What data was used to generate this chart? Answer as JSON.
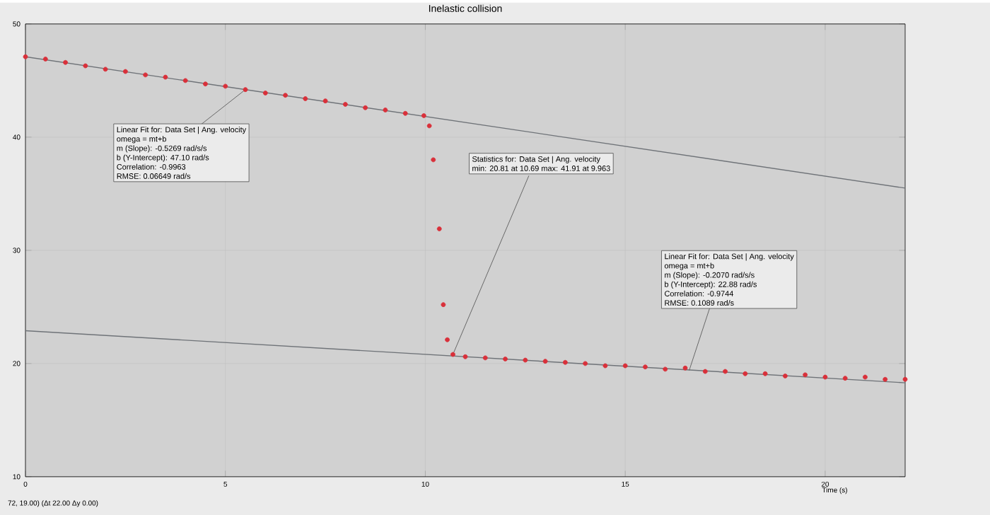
{
  "chart_data": {
    "type": "scatter",
    "title": "Inelastic collision",
    "xlabel": "Time (s)",
    "xlim": [
      0,
      22
    ],
    "ylim": [
      10,
      50
    ],
    "xticks": [
      0,
      5,
      10,
      15,
      20
    ],
    "yticks": [
      10,
      20,
      30,
      40,
      50
    ],
    "grid": true,
    "series": [
      {
        "color": "#d9303a",
        "marker": "circle",
        "x": [
          0,
          0.5,
          1,
          1.5,
          2,
          2.5,
          3,
          3.5,
          4,
          4.5,
          5,
          5.5,
          6,
          6.5,
          7,
          7.5,
          8,
          8.5,
          9,
          9.5,
          9.963,
          10.1,
          10.2,
          10.35,
          10.45,
          10.55,
          10.69,
          11,
          11.5,
          12,
          12.5,
          13,
          13.5,
          14,
          14.5,
          15,
          15.5,
          16,
          16.5,
          17,
          17.5,
          18,
          18.5,
          19,
          19.5,
          20,
          20.5,
          21,
          21.5,
          22
        ],
        "values": [
          47.1,
          46.9,
          46.6,
          46.3,
          46.0,
          45.8,
          45.5,
          45.3,
          45.0,
          44.7,
          44.5,
          44.2,
          43.9,
          43.7,
          43.4,
          43.2,
          42.9,
          42.6,
          42.4,
          42.1,
          41.9,
          41.0,
          38.0,
          31.9,
          25.2,
          22.1,
          20.8,
          20.6,
          20.5,
          20.4,
          20.3,
          20.2,
          20.1,
          20.0,
          19.8,
          19.8,
          19.7,
          19.5,
          19.6,
          19.3,
          19.3,
          19.1,
          19.1,
          18.9,
          19.0,
          18.8,
          18.7,
          18.8,
          18.6,
          18.6
        ]
      },
      {
        "type": "line",
        "color": "#6f7378",
        "marker": "none",
        "line_style": "solid",
        "x": [
          0,
          22
        ],
        "values": [
          47.1,
          35.5
        ]
      },
      {
        "type": "line",
        "color": "#6f7378",
        "marker": "none",
        "line_style": "solid",
        "x": [
          0,
          22
        ],
        "values": [
          22.9,
          18.3
        ]
      }
    ],
    "annotations": [
      "Linear Fit for: Data Set | Ang. velocity",
      {
        "text": "omega = mt+b",
        "x": 5.5,
        "y": 44.2
      },
      "m (Slope): -0.5269 rad/s/s",
      "b (Y-Intercept): 47.10 rad/s",
      "Correlation: -0.9963",
      "RMSE: 0.06649 rad/s",
      "Statistics for: Data Set | Ang. velocity",
      {
        "text": "min: 20.81 at 10.69 max: 41.91 at 9.963",
        "x": 10.69,
        "y": 20.8
      },
      "Linear Fit for: Data Set | Ang. velocity",
      {
        "text": "omega = mt+b",
        "x": 16.6,
        "y": 19.4
      },
      "m (Slope): -0.2070 rad/s/s",
      "b (Y-Intercept): 22.88 rad/s",
      "Correlation: -0.9744",
      "RMSE: 0.1089 rad/s",
      "72, 19.00) (Δt 22.00 Δy 0.00)"
    ]
  }
}
